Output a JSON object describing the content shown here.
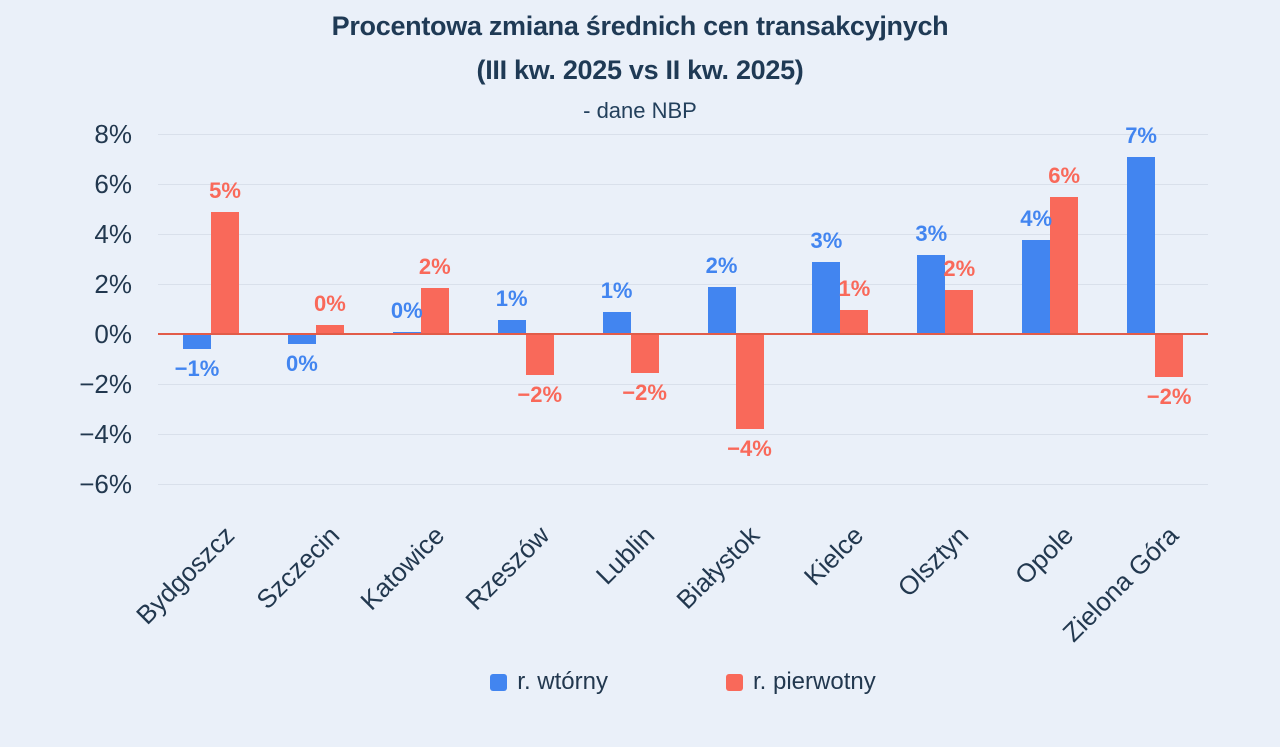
{
  "title": {
    "line1": "Procentowa zmiana średnich cen transakcyjnych",
    "line2": "(III kw. 2025 vs II kw. 2025)",
    "subtitle": "- dane NBP"
  },
  "legend": [
    {
      "label": "r. wtórny",
      "color": "#4285f0"
    },
    {
      "label": "r. pierwotny",
      "color": "#f9695a"
    }
  ],
  "colors": {
    "background": "#eaf0f9",
    "text": "#1f3a55",
    "grid": "#d9e0eb",
    "zero_line": "#e25c49",
    "secondary_market": "#4285f0",
    "primary_market": "#f9695a"
  },
  "chart_data": {
    "type": "bar",
    "title": "Procentowa zmiana średnich cen transakcyjnych (III kw. 2025 vs II kw. 2025) - dane NBP",
    "categories": [
      "Bydgoszcz",
      "Szczecin",
      "Katowice",
      "Rzeszów",
      "Lublin",
      "Białystok",
      "Kielce",
      "Olsztyn",
      "Opole",
      "Zielona Góra"
    ],
    "series": [
      {
        "name": "r. wtórny",
        "color": "#4285f0",
        "values": [
          -0.6,
          -0.4,
          0.1,
          0.55,
          0.9,
          1.9,
          2.9,
          3.15,
          3.75,
          7.1
        ],
        "labels": [
          "−1%",
          "0%",
          "0%",
          "1%",
          "1%",
          "2%",
          "3%",
          "3%",
          "4%",
          "7%"
        ]
      },
      {
        "name": "r. pierwotny",
        "color": "#f9695a",
        "values": [
          4.9,
          0.35,
          1.85,
          -1.65,
          -1.55,
          -3.8,
          0.95,
          1.75,
          5.5,
          -1.7
        ],
        "labels": [
          "5%",
          "0%",
          "2%",
          "−2%",
          "−2%",
          "−4%",
          "1%",
          "2%",
          "6%",
          "−2%"
        ]
      }
    ],
    "xlabel": "",
    "ylabel": "",
    "unit": "%",
    "y_ticks": [
      "8%",
      "6%",
      "4%",
      "2%",
      "0%",
      "−2%",
      "−4%",
      "−6%"
    ],
    "y_tick_values": [
      8,
      6,
      4,
      2,
      0,
      -2,
      -4,
      -6
    ],
    "ylim": [
      -6,
      8
    ],
    "grid": true,
    "legend_position": "bottom"
  }
}
